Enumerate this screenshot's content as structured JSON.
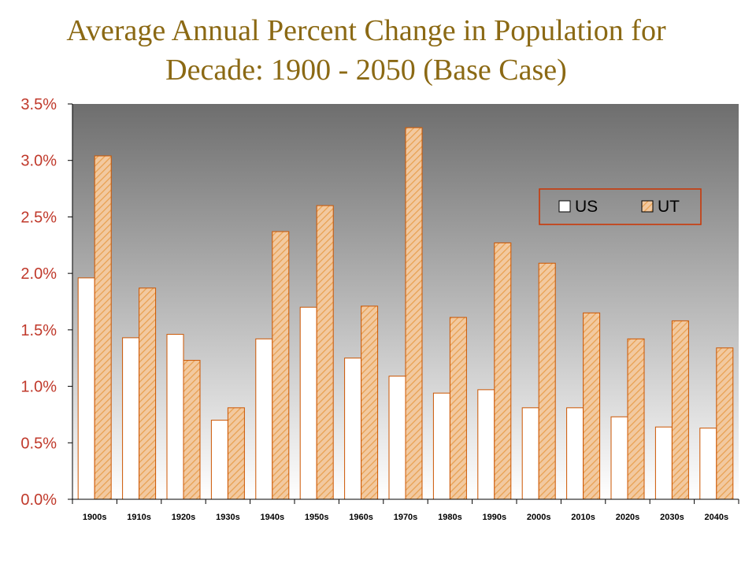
{
  "title": {
    "line1": "Average Annual Percent Change in Population for",
    "line2": "Decade: 1900 - 2050 (Base Case)"
  },
  "colors": {
    "title": "#8B6914",
    "axis_labels": "#C0392B",
    "us_fill": "#FFFFFF",
    "ut_fill": "#F2C9A0",
    "ut_hatch": "#E8A050",
    "bar_edge": "#CC5500",
    "legend_border": "#CC3300",
    "plot_bg_top": "#6E6E6E",
    "plot_bg_bottom": "#FFFFFF"
  },
  "chart_data": {
    "type": "bar",
    "categories": [
      "1900s",
      "1910s",
      "1920s",
      "1930s",
      "1940s",
      "1950s",
      "1960s",
      "1970s",
      "1980s",
      "1990s",
      "2000s",
      "2010s",
      "2020s",
      "2030s",
      "2040s"
    ],
    "series": [
      {
        "name": "US",
        "values": [
          1.96,
          1.43,
          1.46,
          0.7,
          1.42,
          1.7,
          1.25,
          1.09,
          0.94,
          0.97,
          0.81,
          0.81,
          0.73,
          0.64,
          0.63
        ]
      },
      {
        "name": "UT",
        "values": [
          3.04,
          1.87,
          1.23,
          0.81,
          2.37,
          2.6,
          1.71,
          3.29,
          1.61,
          2.27,
          2.09,
          1.65,
          1.42,
          1.58,
          1.34
        ]
      }
    ],
    "ylim": [
      0,
      3.5
    ],
    "yticks": [
      "0.0%",
      "0.5%",
      "1.0%",
      "1.5%",
      "2.0%",
      "2.5%",
      "3.0%",
      "3.5%"
    ],
    "ytick_values": [
      0,
      0.5,
      1.0,
      1.5,
      2.0,
      2.5,
      3.0,
      3.5
    ],
    "legend": [
      "US",
      "UT"
    ],
    "legend_position": "upper-right",
    "grid": false,
    "xlabel": "",
    "ylabel": ""
  }
}
